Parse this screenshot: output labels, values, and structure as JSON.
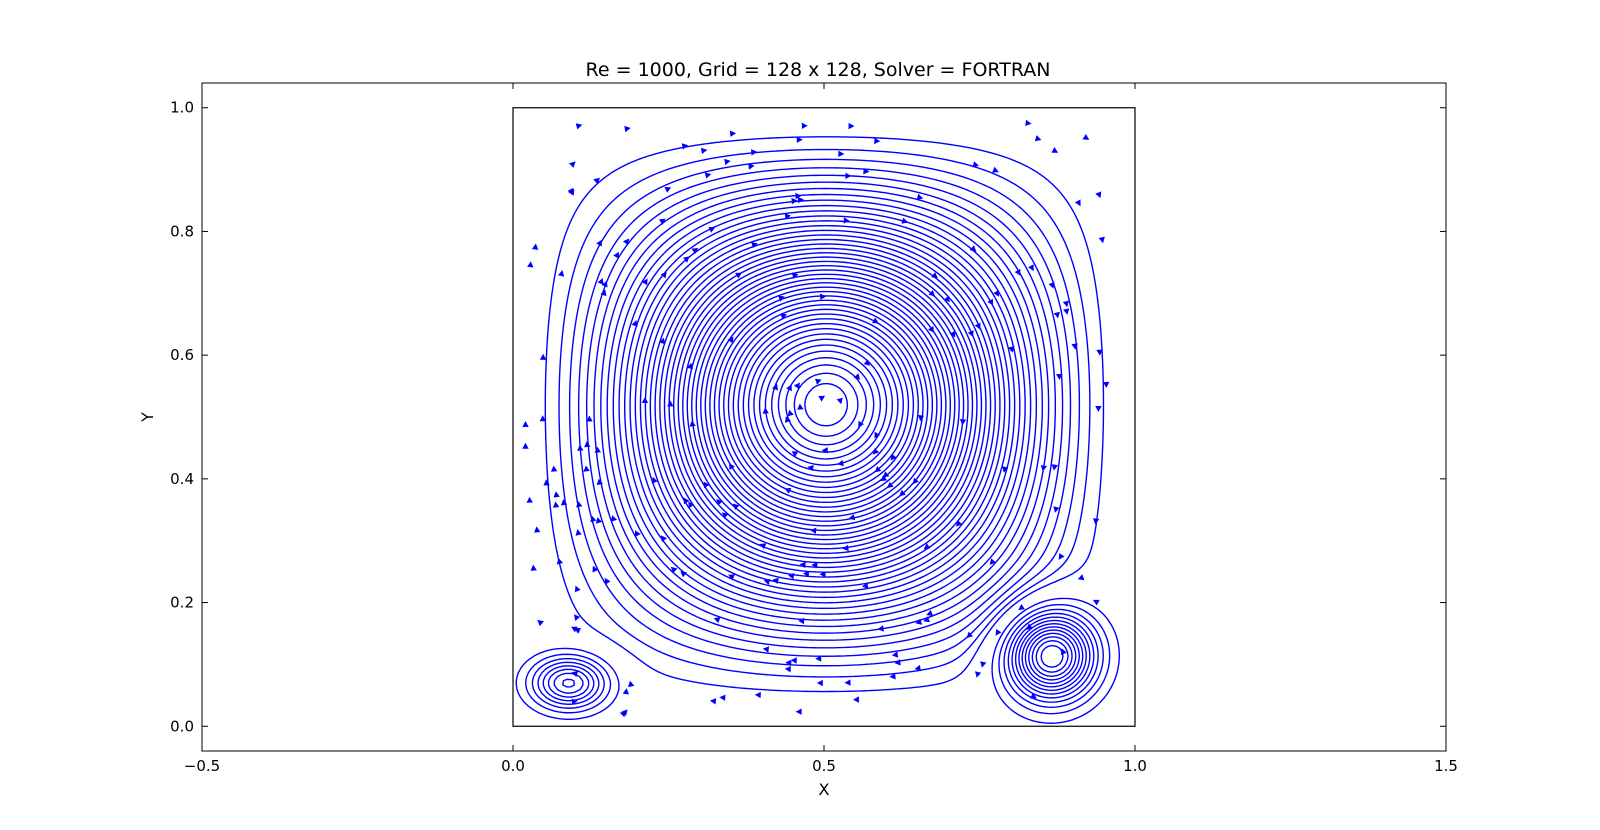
{
  "chart_data": {
    "type": "streamplot",
    "title": "Re = 1000, Grid = 128 x 128, Solver = FORTRAN",
    "xlabel": "X",
    "ylabel": "Y",
    "xlim": [
      -0.5,
      1.5
    ],
    "ylim": [
      -0.04,
      1.04
    ],
    "xticks": [
      -0.5,
      0.0,
      0.5,
      1.0,
      1.5
    ],
    "xtick_labels": [
      "−0.5",
      "0.0",
      "0.5",
      "1.0",
      "1.5"
    ],
    "yticks": [
      0.0,
      0.2,
      0.4,
      0.6,
      0.8,
      1.0
    ],
    "ytick_labels": [
      "0.0",
      "0.2",
      "0.4",
      "0.6",
      "0.8",
      "1.0"
    ],
    "domain": {
      "x": [
        0.0,
        1.0
      ],
      "y": [
        0.0,
        1.0
      ]
    },
    "line_color": "#0000ff",
    "grid": false,
    "legend": false,
    "vortices": [
      {
        "name": "primary",
        "center": [
          0.53,
          0.565
        ],
        "rotation": "clockwise"
      },
      {
        "name": "bottom-left secondary",
        "center": [
          0.09,
          0.07
        ],
        "rotation": "counterclockwise"
      },
      {
        "name": "bottom-right secondary",
        "center": [
          0.865,
          0.115
        ],
        "rotation": "counterclockwise"
      }
    ]
  }
}
